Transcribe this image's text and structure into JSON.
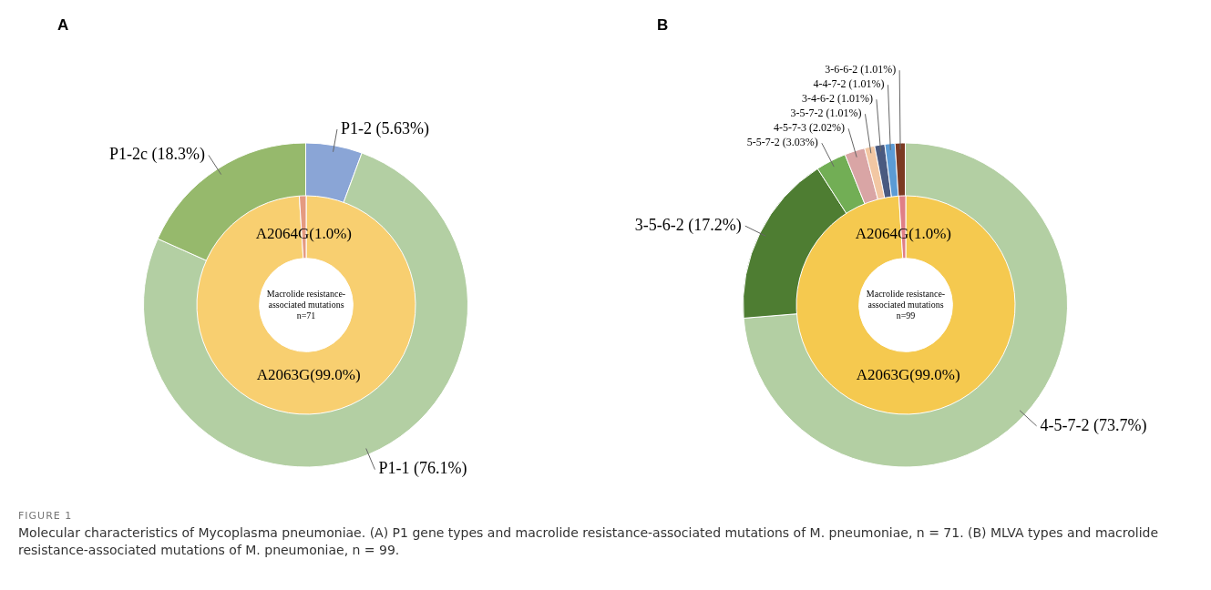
{
  "chart_data": [
    {
      "type": "donut",
      "title": "A",
      "categories": [
        "P1-2 (5.63%)",
        "P1-1 (76.1%)",
        "P1-2c (18.3%)"
      ],
      "values": [
        5.63,
        76.1,
        18.3
      ],
      "colors": [
        "#8aa5d6",
        "#b3cfa3",
        "#96b96c"
      ],
      "annotations": [
        "FIGURE 1",
        "Molecular characteristics of Mycoplasma pneumoniae. (A) P1 gene types and macrolide resistance-associated mutations of M. pneumoniae, n = 71. (B) MLVA types and macrolide resistance-associated mutations of M. pneumoniae, n = 99."
      ]
    },
    {
      "type": "donut",
      "categories": [
        "A2063G(99.0%)",
        "A2064G(1.0%)"
      ],
      "values": [
        99.0,
        1.0
      ],
      "colors": [
        "#f8cf70",
        "#e59a80"
      ],
      "annotations": [
        "Macrolide resistance-associated mutations n=71"
      ]
    },
    {
      "type": "donut",
      "title": "B",
      "categories": [
        "4-5-7-2 (73.7%)",
        "3-5-6-2 (17.2%)",
        "5-5-7-2 (3.03%)",
        "4-5-7-3 (2.02%)",
        "3-5-7-2 (1.01%)",
        "3-4-6-2 (1.01%)",
        "4-4-7-2 (1.01%)",
        "3-6-6-2 (1.01%)"
      ],
      "values": [
        73.7,
        17.2,
        3.03,
        2.02,
        1.01,
        1.01,
        1.01,
        1.01
      ],
      "colors": [
        "#b3cfa3",
        "#4e7d32",
        "#72ae55",
        "#d9a5a5",
        "#f2c7a3",
        "#4a5a80",
        "#5b9bd5",
        "#7b3a22"
      ]
    },
    {
      "type": "donut",
      "categories": [
        "A2063G(99.0%)",
        "A2064G(1.0%)"
      ],
      "values": [
        99.0,
        1.0
      ],
      "colors": [
        "#f5c94f",
        "#e07f86"
      ],
      "annotations": [
        "Macrolide resistance-associated mutations n=99"
      ]
    }
  ]
}
